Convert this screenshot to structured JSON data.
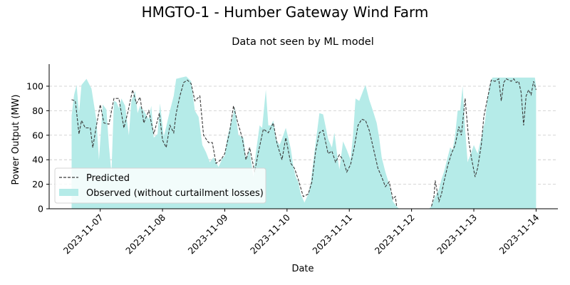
{
  "chart_data": {
    "type": "area",
    "title": "HMGTO-1 - Humber Gateway Wind Farm",
    "subtitle": "Data not seen by ML model",
    "xlabel": "Date",
    "ylabel": "Power Output (MW)",
    "ylim": [
      0,
      118
    ],
    "xlim": [
      -0.82,
      7.35
    ],
    "x_is_days_from": "2023-11-07",
    "yticks": [
      0,
      20,
      40,
      60,
      80,
      100
    ],
    "xticks": [
      "2023-11-07",
      "2023-11-08",
      "2023-11-09",
      "2023-11-10",
      "2023-11-11",
      "2023-11-12",
      "2023-11-13",
      "2023-11-14"
    ],
    "grid": "horizontal dashed",
    "legend_position": "lower-left",
    "colors": {
      "observed": "#b5ebe8",
      "predicted": "#3a3a3a"
    },
    "series": [
      {
        "name": "Predicted",
        "style": "dashed-line",
        "points": [
          [
            -0.46,
            89
          ],
          [
            -0.4,
            88
          ],
          [
            -0.34,
            61
          ],
          [
            -0.3,
            72
          ],
          [
            -0.24,
            66
          ],
          [
            -0.16,
            66
          ],
          [
            -0.12,
            50
          ],
          [
            -0.06,
            68
          ],
          [
            0.0,
            85
          ],
          [
            0.06,
            70
          ],
          [
            0.14,
            69
          ],
          [
            0.22,
            90
          ],
          [
            0.3,
            90
          ],
          [
            0.38,
            66
          ],
          [
            0.44,
            78
          ],
          [
            0.52,
            97
          ],
          [
            0.58,
            86
          ],
          [
            0.64,
            91
          ],
          [
            0.7,
            70
          ],
          [
            0.78,
            80
          ],
          [
            0.86,
            61
          ],
          [
            0.95,
            78
          ],
          [
            1.0,
            56
          ],
          [
            1.06,
            50
          ],
          [
            1.12,
            68
          ],
          [
            1.18,
            62
          ],
          [
            1.22,
            78
          ],
          [
            1.28,
            92
          ],
          [
            1.34,
            103
          ],
          [
            1.4,
            105
          ],
          [
            1.46,
            102
          ],
          [
            1.52,
            88
          ],
          [
            1.6,
            92
          ],
          [
            1.66,
            60
          ],
          [
            1.74,
            54
          ],
          [
            1.8,
            54
          ],
          [
            1.86,
            37
          ],
          [
            1.94,
            40
          ],
          [
            2.0,
            45
          ],
          [
            2.08,
            63
          ],
          [
            2.14,
            84
          ],
          [
            2.2,
            72
          ],
          [
            2.28,
            58
          ],
          [
            2.34,
            40
          ],
          [
            2.4,
            50
          ],
          [
            2.48,
            30
          ],
          [
            2.54,
            46
          ],
          [
            2.62,
            65
          ],
          [
            2.7,
            62
          ],
          [
            2.78,
            70
          ],
          [
            2.84,
            53
          ],
          [
            2.92,
            40
          ],
          [
            2.98,
            58
          ],
          [
            3.06,
            37
          ],
          [
            3.12,
            33
          ],
          [
            3.18,
            24
          ],
          [
            3.26,
            10
          ],
          [
            3.34,
            12
          ],
          [
            3.4,
            22
          ],
          [
            3.46,
            47
          ],
          [
            3.52,
            62
          ],
          [
            3.58,
            64
          ],
          [
            3.66,
            45
          ],
          [
            3.72,
            47
          ],
          [
            3.78,
            38
          ],
          [
            3.84,
            44
          ],
          [
            3.9,
            40
          ],
          [
            3.96,
            30
          ],
          [
            4.02,
            36
          ],
          [
            4.08,
            50
          ],
          [
            4.14,
            68
          ],
          [
            4.2,
            73
          ],
          [
            4.26,
            72
          ],
          [
            4.32,
            64
          ],
          [
            4.38,
            51
          ],
          [
            4.46,
            33
          ],
          [
            4.52,
            26
          ],
          [
            4.58,
            18
          ],
          [
            4.64,
            22
          ],
          [
            4.7,
            8
          ],
          [
            4.74,
            10
          ],
          [
            4.76,
            2
          ],
          [
            4.76,
            null
          ],
          [
            5.32,
            2
          ],
          [
            5.36,
            10
          ],
          [
            5.38,
            23
          ],
          [
            5.44,
            6
          ],
          [
            5.48,
            12
          ],
          [
            5.52,
            22
          ],
          [
            5.58,
            35
          ],
          [
            5.64,
            45
          ],
          [
            5.7,
            52
          ],
          [
            5.76,
            67
          ],
          [
            5.8,
            60
          ],
          [
            5.86,
            90
          ],
          [
            5.92,
            55
          ],
          [
            5.96,
            42
          ],
          [
            6.02,
            26
          ],
          [
            6.06,
            33
          ],
          [
            6.12,
            52
          ],
          [
            6.16,
            75
          ],
          [
            6.22,
            90
          ],
          [
            6.28,
            105
          ],
          [
            6.34,
            104
          ],
          [
            6.4,
            106
          ],
          [
            6.44,
            88
          ],
          [
            6.48,
            103
          ],
          [
            6.52,
            106
          ],
          [
            6.56,
            105
          ],
          [
            6.6,
            104
          ],
          [
            6.64,
            106
          ],
          [
            6.68,
            103
          ],
          [
            6.72,
            104
          ],
          [
            6.76,
            95
          ],
          [
            6.8,
            68
          ],
          [
            6.84,
            92
          ],
          [
            6.88,
            97
          ],
          [
            6.92,
            93
          ],
          [
            6.96,
            104
          ],
          [
            7.0,
            97
          ]
        ]
      },
      {
        "name": "Observed (without curtailment losses)",
        "style": "filled-area",
        "points": [
          [
            -0.46,
            0
          ],
          [
            -0.46,
            76
          ],
          [
            -0.42,
            93
          ],
          [
            -0.38,
            101
          ],
          [
            -0.34,
            78
          ],
          [
            -0.3,
            101
          ],
          [
            -0.22,
            106
          ],
          [
            -0.14,
            98
          ],
          [
            -0.06,
            72
          ],
          [
            -0.02,
            40
          ],
          [
            0.04,
            85
          ],
          [
            0.1,
            81
          ],
          [
            0.14,
            51
          ],
          [
            0.18,
            29
          ],
          [
            0.22,
            88
          ],
          [
            0.26,
            87
          ],
          [
            0.3,
            82
          ],
          [
            0.34,
            90
          ],
          [
            0.4,
            84
          ],
          [
            0.46,
            60
          ],
          [
            0.5,
            88
          ],
          [
            0.56,
            96
          ],
          [
            0.6,
            78
          ],
          [
            0.64,
            84
          ],
          [
            0.7,
            80
          ],
          [
            0.78,
            73
          ],
          [
            0.82,
            84
          ],
          [
            0.86,
            58
          ],
          [
            0.92,
            61
          ],
          [
            0.96,
            86
          ],
          [
            1.02,
            59
          ],
          [
            1.06,
            67
          ],
          [
            1.12,
            80
          ],
          [
            1.18,
            92
          ],
          [
            1.22,
            106
          ],
          [
            1.3,
            107
          ],
          [
            1.38,
            108
          ],
          [
            1.46,
            104
          ],
          [
            1.52,
            80
          ],
          [
            1.58,
            75
          ],
          [
            1.64,
            52
          ],
          [
            1.7,
            46
          ],
          [
            1.76,
            38
          ],
          [
            1.82,
            42
          ],
          [
            1.9,
            34
          ],
          [
            1.96,
            41
          ],
          [
            2.0,
            43
          ],
          [
            2.04,
            58
          ],
          [
            2.08,
            66
          ],
          [
            2.12,
            73
          ],
          [
            2.16,
            83
          ],
          [
            2.22,
            60
          ],
          [
            2.3,
            58
          ],
          [
            2.34,
            40
          ],
          [
            2.4,
            48
          ],
          [
            2.46,
            26
          ],
          [
            2.5,
            46
          ],
          [
            2.56,
            68
          ],
          [
            2.6,
            66
          ],
          [
            2.66,
            97
          ],
          [
            2.7,
            68
          ],
          [
            2.74,
            68
          ],
          [
            2.78,
            72
          ],
          [
            2.82,
            57
          ],
          [
            2.88,
            52
          ],
          [
            2.92,
            57
          ],
          [
            2.98,
            66
          ],
          [
            3.02,
            58
          ],
          [
            3.06,
            49
          ],
          [
            3.1,
            35
          ],
          [
            3.14,
            26
          ],
          [
            3.18,
            22
          ],
          [
            3.22,
            12
          ],
          [
            3.28,
            5
          ],
          [
            3.34,
            12
          ],
          [
            3.38,
            21
          ],
          [
            3.44,
            46
          ],
          [
            3.48,
            62
          ],
          [
            3.52,
            78
          ],
          [
            3.58,
            77
          ],
          [
            3.62,
            67
          ],
          [
            3.66,
            57
          ],
          [
            3.72,
            50
          ],
          [
            3.76,
            62
          ],
          [
            3.8,
            46
          ],
          [
            3.84,
            32
          ],
          [
            3.9,
            55
          ],
          [
            3.96,
            48
          ],
          [
            4.02,
            40
          ],
          [
            4.06,
            60
          ],
          [
            4.1,
            90
          ],
          [
            4.16,
            88
          ],
          [
            4.22,
            96
          ],
          [
            4.26,
            101
          ],
          [
            4.32,
            89
          ],
          [
            4.38,
            80
          ],
          [
            4.44,
            70
          ],
          [
            4.48,
            58
          ],
          [
            4.52,
            42
          ],
          [
            4.58,
            30
          ],
          [
            4.64,
            20
          ],
          [
            4.7,
            6
          ],
          [
            4.76,
            2
          ],
          [
            4.8,
            0
          ],
          [
            5.28,
            0
          ],
          [
            5.32,
            2
          ],
          [
            5.38,
            10
          ],
          [
            5.44,
            16
          ],
          [
            5.48,
            24
          ],
          [
            5.52,
            30
          ],
          [
            5.58,
            42
          ],
          [
            5.62,
            50
          ],
          [
            5.66,
            48
          ],
          [
            5.7,
            60
          ],
          [
            5.74,
            80
          ],
          [
            5.78,
            80
          ],
          [
            5.82,
            100
          ],
          [
            5.86,
            65
          ],
          [
            5.9,
            38
          ],
          [
            5.96,
            46
          ],
          [
            6.0,
            52
          ],
          [
            6.06,
            45
          ],
          [
            6.12,
            58
          ],
          [
            6.18,
            72
          ],
          [
            6.22,
            90
          ],
          [
            6.26,
            102
          ],
          [
            6.3,
            107
          ],
          [
            6.36,
            107
          ],
          [
            6.44,
            107
          ],
          [
            6.52,
            107
          ],
          [
            6.6,
            107
          ],
          [
            6.68,
            107
          ],
          [
            6.76,
            107
          ],
          [
            6.84,
            107
          ],
          [
            6.92,
            107
          ],
          [
            6.98,
            107
          ],
          [
            7.0,
            100
          ],
          [
            7.0,
            0
          ]
        ]
      }
    ]
  }
}
